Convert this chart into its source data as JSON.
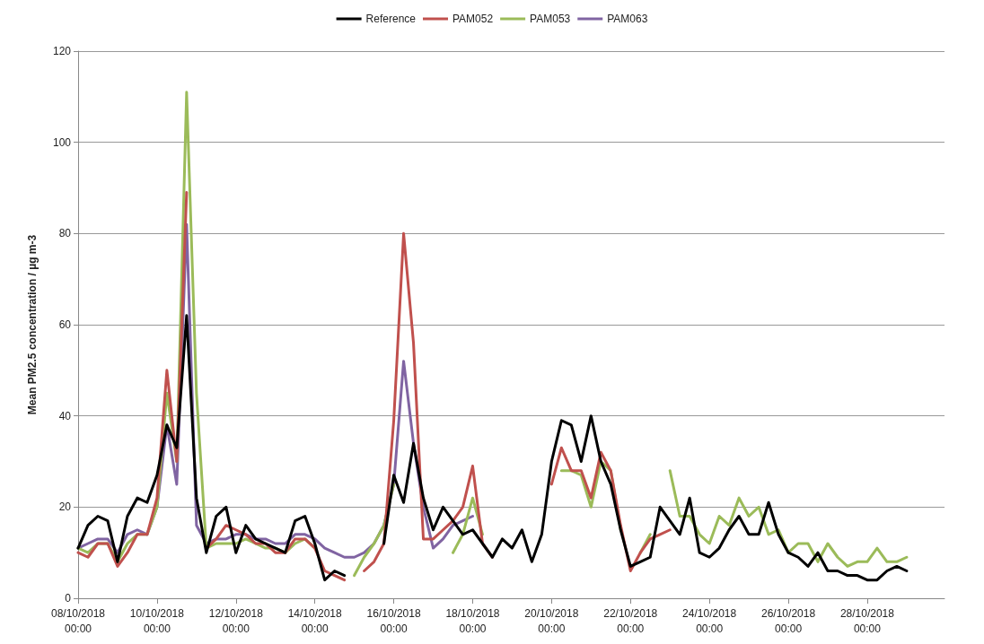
{
  "chart_data": {
    "type": "line",
    "ylabel": "Mean PM2.5 concentration / µg m-3",
    "x": [
      "2018-10-08T00:00",
      "2018-10-08T06:00",
      "2018-10-08T12:00",
      "2018-10-08T18:00",
      "2018-10-09T00:00",
      "2018-10-09T06:00",
      "2018-10-09T12:00",
      "2018-10-09T18:00",
      "2018-10-10T00:00",
      "2018-10-10T06:00",
      "2018-10-10T12:00",
      "2018-10-10T18:00",
      "2018-10-11T00:00",
      "2018-10-11T06:00",
      "2018-10-11T12:00",
      "2018-10-11T18:00",
      "2018-10-12T00:00",
      "2018-10-12T06:00",
      "2018-10-12T12:00",
      "2018-10-12T18:00",
      "2018-10-13T00:00",
      "2018-10-13T06:00",
      "2018-10-13T12:00",
      "2018-10-13T18:00",
      "2018-10-14T00:00",
      "2018-10-14T06:00",
      "2018-10-14T12:00",
      "2018-10-14T18:00",
      "2018-10-15T00:00",
      "2018-10-15T06:00",
      "2018-10-15T12:00",
      "2018-10-15T18:00",
      "2018-10-16T00:00",
      "2018-10-16T06:00",
      "2018-10-16T12:00",
      "2018-10-16T18:00",
      "2018-10-17T00:00",
      "2018-10-17T06:00",
      "2018-10-17T12:00",
      "2018-10-17T18:00",
      "2018-10-18T00:00",
      "2018-10-18T06:00",
      "2018-10-18T12:00",
      "2018-10-18T18:00",
      "2018-10-19T00:00",
      "2018-10-19T06:00",
      "2018-10-19T12:00",
      "2018-10-19T18:00",
      "2018-10-20T00:00",
      "2018-10-20T06:00",
      "2018-10-20T12:00",
      "2018-10-20T18:00",
      "2018-10-21T00:00",
      "2018-10-21T06:00",
      "2018-10-21T12:00",
      "2018-10-21T18:00",
      "2018-10-22T00:00",
      "2018-10-22T06:00",
      "2018-10-22T12:00",
      "2018-10-22T18:00",
      "2018-10-23T00:00",
      "2018-10-23T06:00",
      "2018-10-23T12:00",
      "2018-10-23T18:00",
      "2018-10-24T00:00",
      "2018-10-24T06:00",
      "2018-10-24T12:00",
      "2018-10-24T18:00",
      "2018-10-25T00:00",
      "2018-10-25T06:00",
      "2018-10-25T12:00",
      "2018-10-25T18:00",
      "2018-10-26T00:00",
      "2018-10-26T06:00",
      "2018-10-26T12:00",
      "2018-10-26T18:00",
      "2018-10-27T00:00",
      "2018-10-27T06:00",
      "2018-10-27T12:00",
      "2018-10-27T18:00",
      "2018-10-28T00:00",
      "2018-10-28T06:00",
      "2018-10-28T12:00",
      "2018-10-28T18:00",
      "2018-10-29T00:00"
    ],
    "series": [
      {
        "name": "Reference",
        "color": "#000000",
        "values": [
          11,
          16,
          18,
          17,
          8,
          18,
          22,
          21,
          27,
          38,
          33,
          62,
          22,
          10,
          18,
          20,
          10,
          16,
          13,
          12,
          11,
          10,
          17,
          18,
          12,
          4,
          6,
          5,
          null,
          null,
          null,
          12,
          27,
          21,
          34,
          22,
          15,
          20,
          17,
          14,
          15,
          12,
          9,
          13,
          11,
          15,
          8,
          14,
          30,
          39,
          38,
          30,
          40,
          30,
          25,
          15,
          7,
          8,
          9,
          20,
          17,
          14,
          22,
          10,
          9,
          11,
          15,
          18,
          14,
          14,
          21,
          14,
          10,
          9,
          7,
          10,
          6,
          6,
          5,
          5,
          4,
          4,
          6,
          7,
          6
        ]
      },
      {
        "name": "PAM052",
        "color": "#c0504d",
        "values": [
          10,
          9,
          12,
          12,
          7,
          10,
          14,
          14,
          22,
          50,
          30,
          89,
          null,
          11,
          13,
          16,
          15,
          14,
          12,
          12,
          10,
          10,
          13,
          13,
          11,
          6,
          5,
          4,
          null,
          6,
          8,
          12,
          39,
          80,
          56,
          13,
          13,
          15,
          17,
          20,
          29,
          12,
          9,
          null,
          null,
          null,
          null,
          null,
          25,
          33,
          28,
          28,
          22,
          32,
          28,
          16,
          6,
          10,
          13,
          14,
          15,
          null,
          null,
          null,
          null,
          null,
          null,
          null,
          null,
          null,
          null,
          null,
          null,
          null,
          null,
          null,
          null,
          null,
          null,
          null,
          null,
          null,
          null,
          null,
          null
        ]
      },
      {
        "name": "PAM053",
        "color": "#9bbb59",
        "values": [
          11,
          10,
          12,
          12,
          8,
          12,
          14,
          14,
          20,
          45,
          30,
          111,
          45,
          11,
          12,
          12,
          12,
          13,
          12,
          11,
          11,
          10,
          12,
          13,
          11,
          null,
          null,
          null,
          5,
          9,
          12,
          16,
          25,
          null,
          null,
          null,
          null,
          null,
          10,
          14,
          22,
          14,
          null,
          null,
          null,
          null,
          null,
          null,
          null,
          28,
          28,
          27,
          20,
          30,
          28,
          15,
          null,
          10,
          14,
          null,
          28,
          18,
          18,
          14,
          12,
          18,
          16,
          22,
          18,
          20,
          14,
          15,
          10,
          12,
          12,
          8,
          12,
          9,
          7,
          8,
          8,
          11,
          8,
          8,
          9
        ]
      },
      {
        "name": "PAM063",
        "color": "#8064a2",
        "values": [
          11,
          12,
          13,
          13,
          10,
          14,
          15,
          14,
          20,
          38,
          25,
          82,
          16,
          12,
          13,
          13,
          14,
          14,
          13,
          13,
          12,
          12,
          14,
          14,
          13,
          11,
          10,
          9,
          9,
          10,
          12,
          16,
          25,
          52,
          34,
          20,
          11,
          13,
          16,
          17,
          18,
          null,
          null,
          null,
          null,
          null,
          null,
          null,
          null,
          null,
          null,
          null,
          null,
          null,
          null,
          null,
          null,
          null,
          null,
          null,
          null,
          null,
          null,
          null,
          null,
          null,
          null,
          null,
          null,
          null,
          null,
          null,
          null,
          null,
          null,
          null,
          null,
          null,
          null,
          null,
          null,
          null,
          null,
          null,
          null
        ]
      }
    ],
    "xlim": [
      "2018-10-08T00:00",
      "2018-10-29T23:00"
    ],
    "xticks": [
      {
        "value": "2018-10-08T00:00",
        "label": "08/10/2018 00:00"
      },
      {
        "value": "2018-10-10T00:00",
        "label": "10/10/2018 00:00"
      },
      {
        "value": "2018-10-12T00:00",
        "label": "12/10/2018 00:00"
      },
      {
        "value": "2018-10-14T00:00",
        "label": "14/10/2018 00:00"
      },
      {
        "value": "2018-10-16T00:00",
        "label": "16/10/2018 00:00"
      },
      {
        "value": "2018-10-18T00:00",
        "label": "18/10/2018 00:00"
      },
      {
        "value": "2018-10-20T00:00",
        "label": "20/10/2018 00:00"
      },
      {
        "value": "2018-10-22T00:00",
        "label": "22/10/2018 00:00"
      },
      {
        "value": "2018-10-24T00:00",
        "label": "24/10/2018 00:00"
      },
      {
        "value": "2018-10-26T00:00",
        "label": "26/10/2018 00:00"
      },
      {
        "value": "2018-10-28T00:00",
        "label": "28/10/2018 00:00"
      }
    ],
    "ylim": [
      0,
      120
    ],
    "yticks": [
      0,
      20,
      40,
      60,
      80,
      100,
      120
    ],
    "grid": "y",
    "legend": "top",
    "marker": "none",
    "line_style": "solid"
  }
}
